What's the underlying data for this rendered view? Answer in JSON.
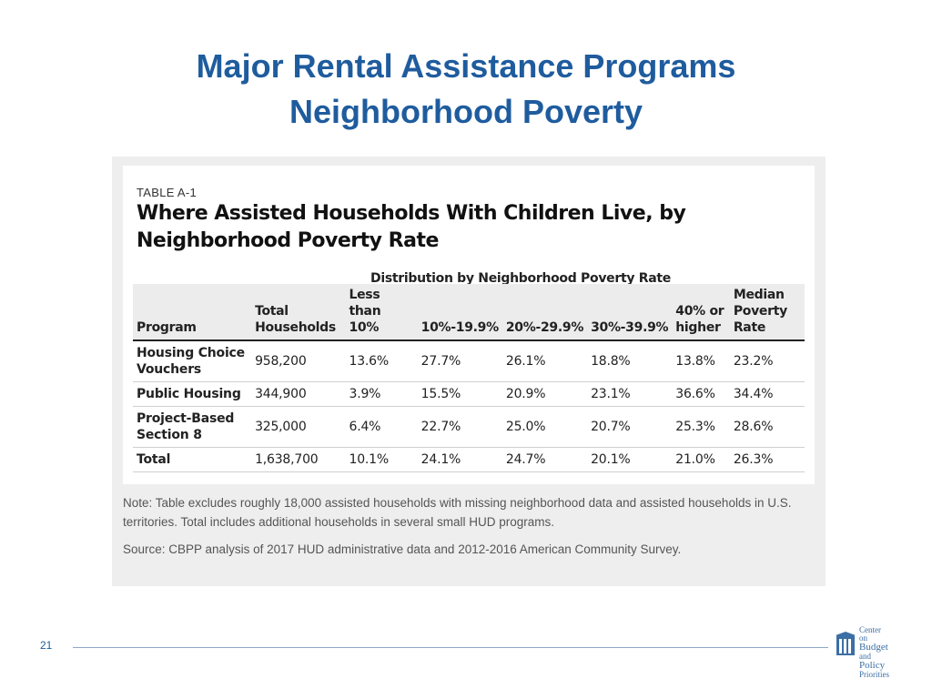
{
  "slide": {
    "title_line1": "Major Rental Assistance Programs",
    "title_line2": "Neighborhood Poverty",
    "page_number": "21"
  },
  "table": {
    "label": "TABLE A-1",
    "title": "Where Assisted Households With Children Live, by Neighborhood Poverty Rate",
    "group_header": "Distribution by Neighborhood Poverty Rate",
    "columns": [
      "Program",
      "Total Households",
      "Less than 10%",
      "10%-19.9%",
      "20%-29.9%",
      "30%-39.9%",
      "40% or higher",
      "Median Poverty Rate"
    ],
    "rows": [
      [
        "Housing Choice Vouchers",
        "958,200",
        "13.6%",
        "27.7%",
        "26.1%",
        "18.8%",
        "13.8%",
        "23.2%"
      ],
      [
        "Public Housing",
        "344,900",
        "3.9%",
        "15.5%",
        "20.9%",
        "23.1%",
        "36.6%",
        "34.4%"
      ],
      [
        "Project-Based Section 8",
        "325,000",
        "6.4%",
        "22.7%",
        "25.0%",
        "20.7%",
        "25.3%",
        "28.6%"
      ],
      [
        "Total",
        "1,638,700",
        "10.1%",
        "24.1%",
        "24.7%",
        "20.1%",
        "21.0%",
        "26.3%"
      ]
    ],
    "note": "Note: Table excludes roughly 18,000 assisted households with missing neighborhood data and assisted households in U.S. territories. Total includes additional households in several small HUD programs.",
    "source": "Source: CBPP analysis of 2017 HUD administrative data and 2012-2016 American Community Survey."
  },
  "logo": {
    "line1": "Center",
    "line2": "on",
    "line3": "Budget",
    "line4": "and",
    "line5": "Policy",
    "line6": "Priorities"
  },
  "colors": {
    "title": "#1f5c9e",
    "panel": "#eeeeee",
    "header_row": "#ececec"
  }
}
